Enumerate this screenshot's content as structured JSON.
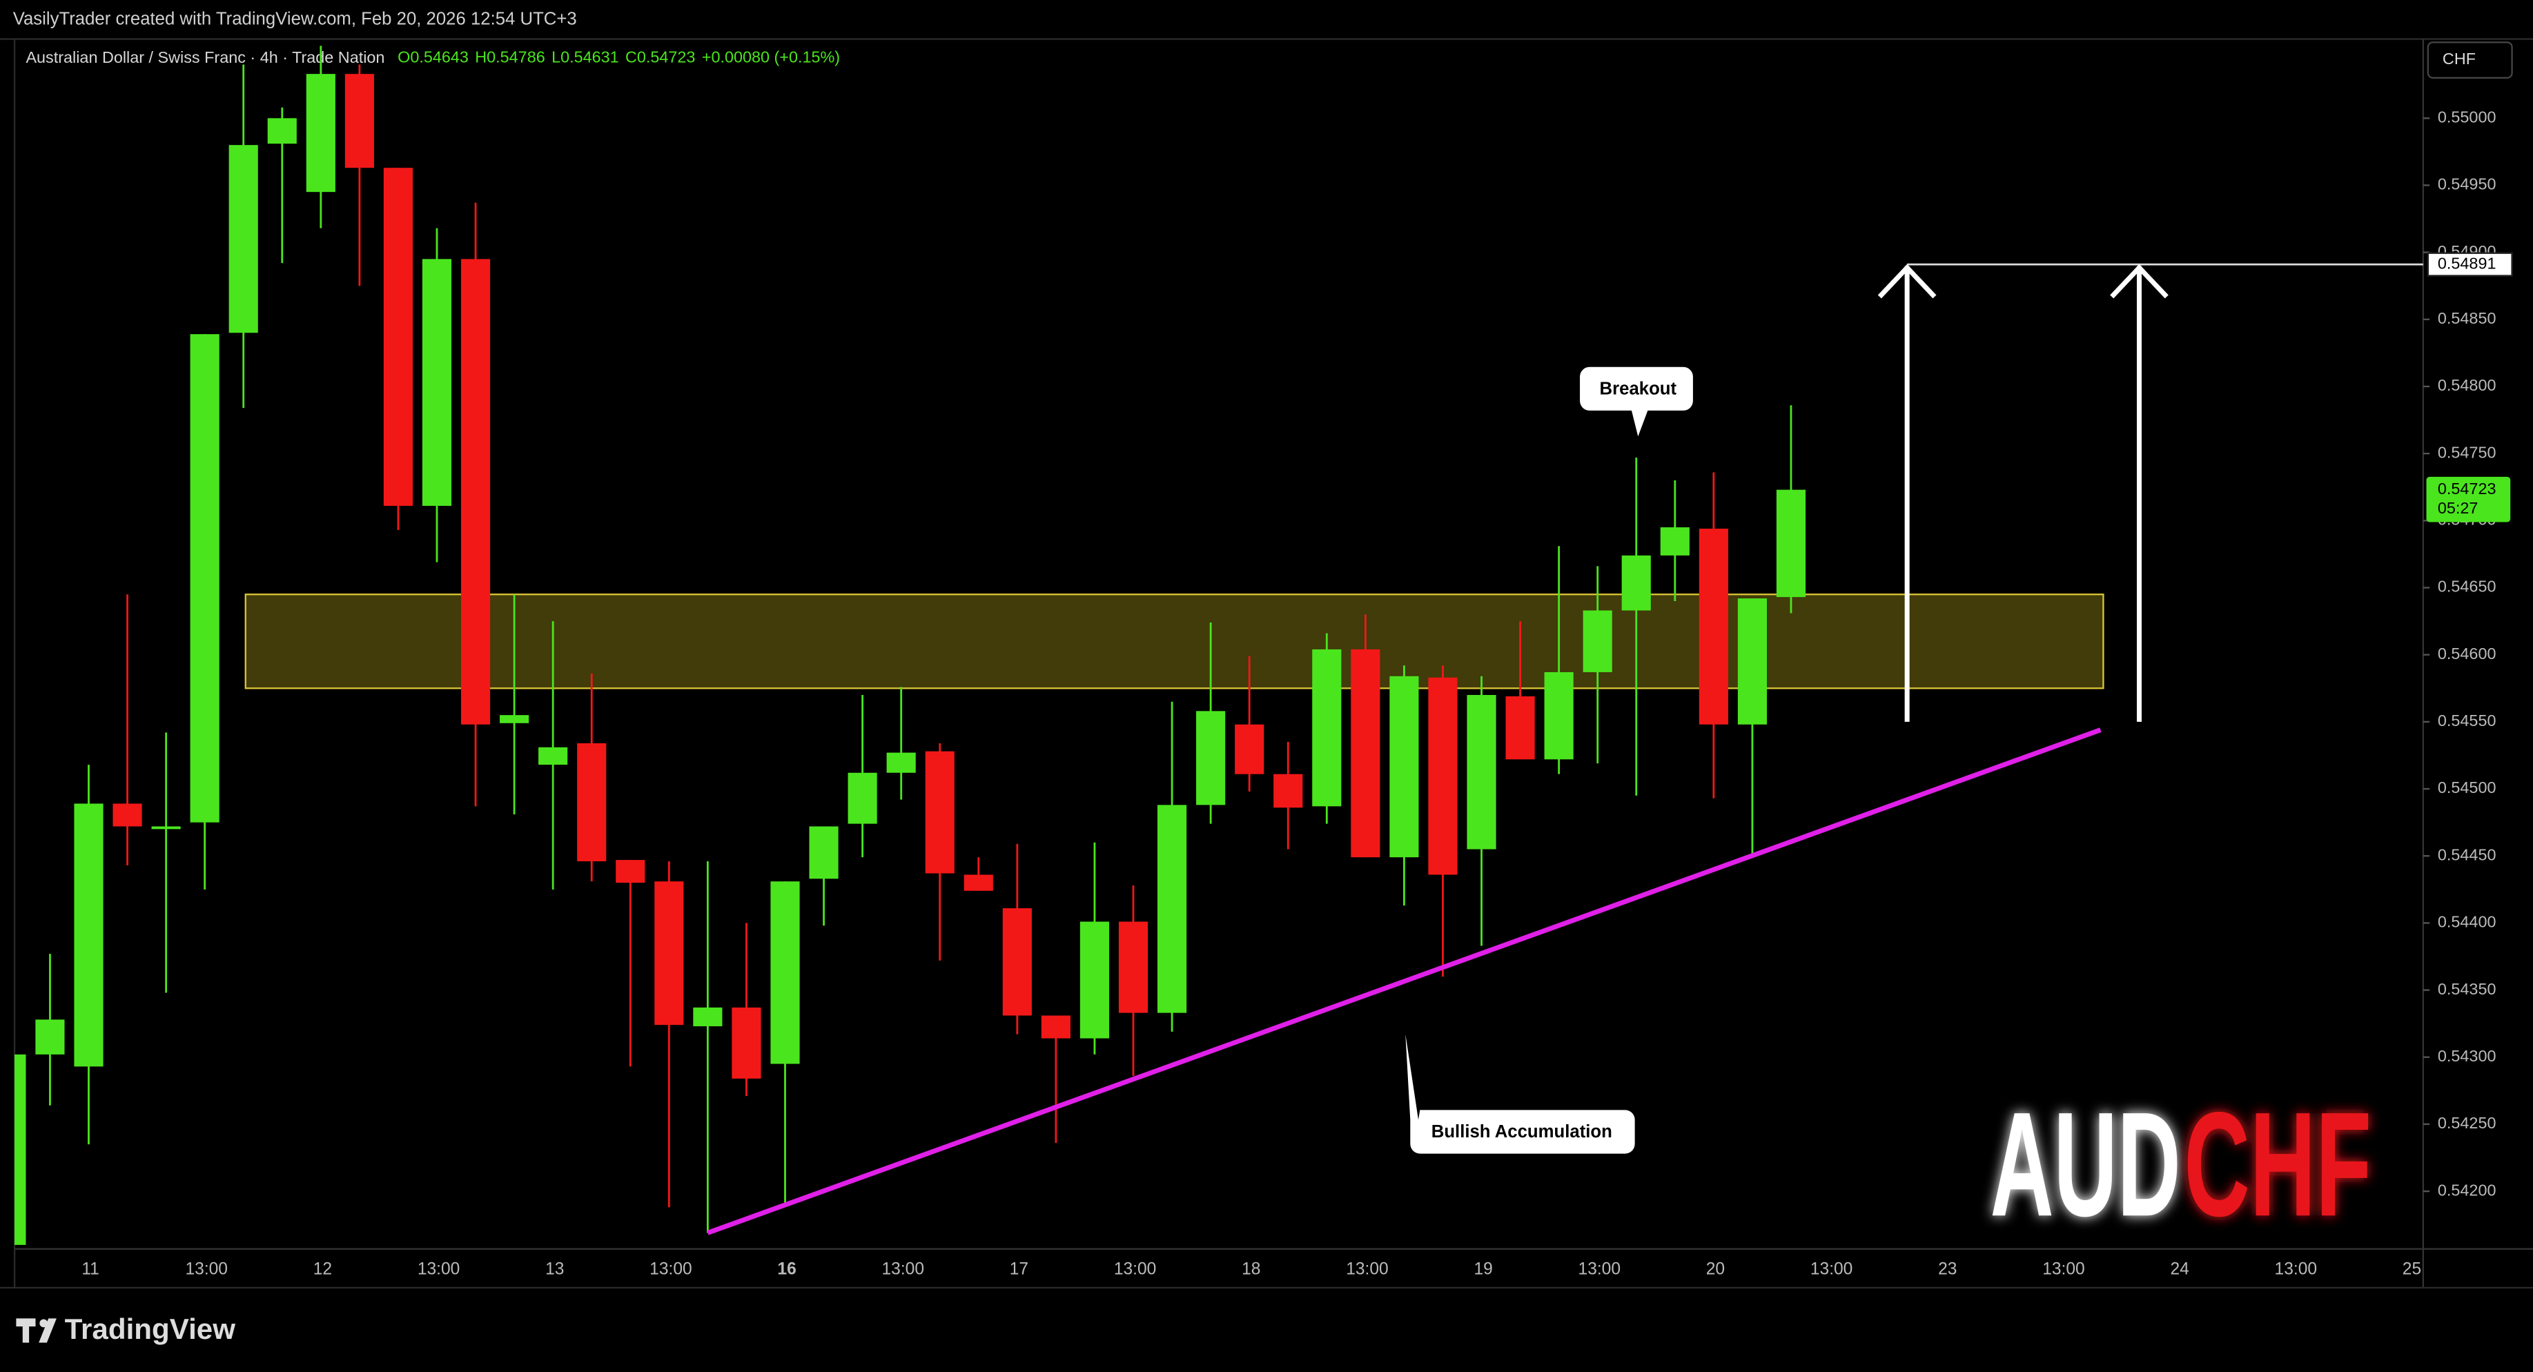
{
  "header": {
    "credit": "VasilyTrader created with TradingView.com, Feb 20, 2026 12:54 UTC+3"
  },
  "footer": {
    "brand": "TradingView"
  },
  "chart_data": {
    "type": "candlestick",
    "title": "Australian Dollar / Swiss Franc · 4h · Trade Nation",
    "ohlc_legend": [
      "O0.54643",
      "H0.54786",
      "L0.54631",
      "C0.54723"
    ],
    "change": "+0.00080 (+0.15%)",
    "currency": "CHF",
    "up_color": "#4be51e",
    "down_color": "#f21818",
    "open": [
      0.5416,
      0.54302,
      0.54293,
      0.54489,
      0.5447,
      0.54475,
      0.5484,
      0.54981,
      0.54945,
      0.55033,
      0.54963,
      0.54711,
      0.54895,
      0.54549,
      0.54518,
      0.54534,
      0.54447,
      0.54431,
      0.54323,
      0.54337,
      0.54295,
      0.54433,
      0.54474,
      0.54512,
      0.54528,
      0.54436,
      0.54411,
      0.54331,
      0.54314,
      0.54401,
      0.54333,
      0.54488,
      0.54548,
      0.54511,
      0.54487,
      0.54604,
      0.54449,
      0.54583,
      0.54455,
      0.54569,
      0.54522,
      0.54587,
      0.54633,
      0.54674,
      0.54694,
      0.54548,
      0.54643
    ],
    "high": [
      0.54302,
      0.54377,
      0.54518,
      0.54645,
      0.54542,
      0.54839,
      0.5504,
      0.55008,
      0.55054,
      0.5504,
      0.54963,
      0.54918,
      0.54937,
      0.54645,
      0.54625,
      0.54586,
      0.54447,
      0.54446,
      0.54446,
      0.544,
      0.54431,
      0.54472,
      0.5457,
      0.54576,
      0.54534,
      0.54449,
      0.54459,
      0.54331,
      0.5446,
      0.54428,
      0.54565,
      0.54624,
      0.54599,
      0.54535,
      0.54616,
      0.5463,
      0.54592,
      0.54592,
      0.54584,
      0.54625,
      0.54681,
      0.54666,
      0.54747,
      0.5473,
      0.54736,
      0.54642,
      0.54786
    ],
    "low": [
      0.54157,
      0.54264,
      0.54235,
      0.54443,
      0.54348,
      0.54425,
      0.54784,
      0.54892,
      0.54918,
      0.54875,
      0.54693,
      0.54669,
      0.54487,
      0.54481,
      0.54425,
      0.54431,
      0.54293,
      0.54188,
      0.54169,
      0.54271,
      0.5419,
      0.54398,
      0.54449,
      0.54492,
      0.54372,
      0.54424,
      0.54317,
      0.54236,
      0.54302,
      0.54286,
      0.54319,
      0.54474,
      0.54498,
      0.54455,
      0.54474,
      0.54449,
      0.54413,
      0.5436,
      0.54383,
      0.54522,
      0.54511,
      0.54519,
      0.54495,
      0.5464,
      0.54493,
      0.54452,
      0.54631
    ],
    "close": [
      0.54302,
      0.54328,
      0.54489,
      0.54472,
      0.54472,
      0.54839,
      0.5498,
      0.55,
      0.55033,
      0.54963,
      0.54711,
      0.54895,
      0.54548,
      0.54555,
      0.54531,
      0.54446,
      0.5443,
      0.54324,
      0.54337,
      0.54284,
      0.54431,
      0.54472,
      0.54512,
      0.54527,
      0.54437,
      0.54424,
      0.54331,
      0.54314,
      0.54401,
      0.54333,
      0.54488,
      0.54558,
      0.54511,
      0.54486,
      0.54604,
      0.54449,
      0.54584,
      0.54436,
      0.5457,
      0.54522,
      0.54587,
      0.54633,
      0.54674,
      0.54695,
      0.54548,
      0.54642,
      0.54723
    ],
    "ylim": [
      0.54157,
      0.55059
    ],
    "yticks": [
      {
        "value": 0.542,
        "label": "0.54200"
      },
      {
        "value": 0.5425,
        "label": "0.54250"
      },
      {
        "value": 0.543,
        "label": "0.54300"
      },
      {
        "value": 0.5435,
        "label": "0.54350"
      },
      {
        "value": 0.544,
        "label": "0.54400"
      },
      {
        "value": 0.5445,
        "label": "0.54450"
      },
      {
        "value": 0.545,
        "label": "0.54500"
      },
      {
        "value": 0.5455,
        "label": "0.54550"
      },
      {
        "value": 0.546,
        "label": "0.54600"
      },
      {
        "value": 0.5465,
        "label": "0.54650"
      },
      {
        "value": 0.547,
        "label": "0.54700"
      },
      {
        "value": 0.5475,
        "label": "0.54750"
      },
      {
        "value": 0.548,
        "label": "0.54800"
      },
      {
        "value": 0.5485,
        "label": "0.54850"
      },
      {
        "value": 0.549,
        "label": "0.54900"
      },
      {
        "value": 0.5495,
        "label": "0.54950"
      },
      {
        "value": 0.55,
        "label": "0.55000"
      }
    ],
    "x_labels": [
      "11",
      "13:00",
      "12",
      "13:00",
      "13",
      "13:00",
      "16",
      "13:00",
      "17",
      "13:00",
      "18",
      "13:00",
      "19",
      "13:00",
      "20",
      "13:00",
      "23",
      "13:00",
      "24",
      "13:00",
      "25"
    ],
    "zone": [
      0.54575,
      0.54645
    ],
    "trendline": {
      "x": [
        18,
        54
      ],
      "values": [
        0.54169,
        0.54544
      ]
    },
    "target": {
      "value": 0.54891,
      "label": "0.54891",
      "from": 0.5455,
      "x": [
        49,
        55
      ]
    },
    "last_price": {
      "value": 0.54723,
      "label": "0.54723",
      "countdown": "05:27"
    },
    "annotations": [
      "Breakout",
      "Bullish Accumulation"
    ],
    "watermark": {
      "base": "AUD",
      "quote": "CHF"
    }
  }
}
